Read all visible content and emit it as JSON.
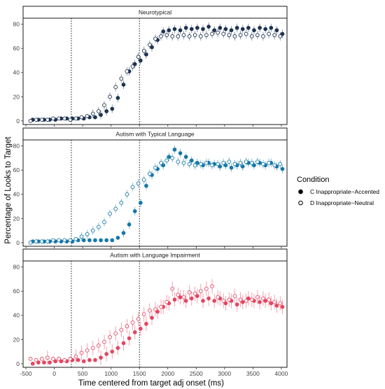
{
  "chart_data": {
    "type": "scatter",
    "xlabel": "Time centered from target adj onset (ms)",
    "ylabel": "Percentage of Looks to Target",
    "xlim": [
      -550,
      4100
    ],
    "ylim": [
      -3,
      85
    ],
    "x_ticks": [
      -500,
      0,
      500,
      1000,
      1500,
      2000,
      2500,
      3000,
      3500,
      4000
    ],
    "y_ticks": [
      0,
      20,
      40,
      60,
      80
    ],
    "reference_lines_x": [
      300,
      1500
    ],
    "legend": {
      "title": "Condition",
      "entries": [
        {
          "label": "C Inappropriate−Accented",
          "marker": "filled"
        },
        {
          "label": "D Inappropriate−Neutral",
          "marker": "open"
        }
      ]
    },
    "panels": [
      {
        "title": "Neurotypical",
        "color": "#1e3350",
        "series": [
          {
            "name": "C Inappropriate−Accented",
            "x": [
              -400,
              -300,
              -200,
              -100,
              0,
              100,
              200,
              300,
              400,
              500,
              600,
              700,
              800,
              900,
              1000,
              1100,
              1200,
              1300,
              1400,
              1500,
              1600,
              1700,
              1800,
              1900,
              2000,
              2100,
              2200,
              2300,
              2400,
              2500,
              2600,
              2700,
              2800,
              2900,
              3000,
              3100,
              3200,
              3300,
              3400,
              3500,
              3600,
              3700,
              3800,
              3900,
              4000
            ],
            "y": [
              1,
              1,
              1,
              1,
              1,
              2,
              2,
              2,
              2,
              2,
              3,
              3,
              5,
              8,
              10,
              19,
              30,
              41,
              47,
              50,
              55,
              61,
              67,
              74,
              75,
              76,
              75,
              77,
              76,
              77,
              76,
              78,
              75,
              77,
              76,
              75,
              77,
              76,
              77,
              75,
              77,
              76,
              77,
              75,
              72
            ]
          },
          {
            "name": "D Inappropriate−Neutral",
            "x": [
              -400,
              -300,
              -200,
              -100,
              0,
              100,
              200,
              300,
              400,
              500,
              600,
              700,
              800,
              900,
              1000,
              1100,
              1200,
              1300,
              1400,
              1500,
              1600,
              1700,
              1800,
              1900,
              2000,
              2100,
              2200,
              2300,
              2400,
              2500,
              2600,
              2700,
              2800,
              2900,
              3000,
              3100,
              3200,
              3300,
              3400,
              3500,
              3600,
              3700,
              3800,
              3900,
              4000
            ],
            "y": [
              0,
              1,
              1,
              1,
              2,
              2,
              2,
              1,
              2,
              3,
              4,
              6,
              8,
              13,
              20,
              28,
              35,
              41,
              45,
              53,
              58,
              63,
              68,
              70,
              71,
              70,
              70,
              71,
              70,
              71,
              70,
              71,
              72,
              73,
              72,
              71,
              70,
              71,
              72,
              70,
              71,
              70,
              72,
              71,
              70
            ]
          }
        ]
      },
      {
        "title": "Autism with Typical Language",
        "color": "#1577a8",
        "series": [
          {
            "name": "C Inappropriate−Accented",
            "x": [
              -400,
              -300,
              -200,
              -100,
              0,
              100,
              200,
              300,
              400,
              500,
              600,
              700,
              800,
              900,
              1000,
              1100,
              1200,
              1300,
              1400,
              1500,
              1600,
              1700,
              1800,
              1900,
              2000,
              2100,
              2200,
              2300,
              2400,
              2500,
              2600,
              2700,
              2800,
              2900,
              3000,
              3100,
              3200,
              3300,
              3400,
              3500,
              3600,
              3700,
              3800,
              3900,
              4000
            ],
            "y": [
              1,
              1,
              1,
              1,
              1,
              1,
              1,
              1,
              2,
              2,
              2,
              2,
              2,
              2,
              2,
              4,
              8,
              15,
              26,
              33,
              47,
              56,
              61,
              64,
              71,
              77,
              74,
              71,
              68,
              66,
              64,
              66,
              65,
              63,
              64,
              62,
              64,
              63,
              66,
              64,
              66,
              64,
              66,
              63,
              61
            ]
          },
          {
            "name": "D Inappropriate−Neutral",
            "x": [
              -400,
              -300,
              -200,
              -100,
              0,
              100,
              200,
              300,
              400,
              500,
              600,
              700,
              800,
              900,
              1000,
              1100,
              1200,
              1300,
              1400,
              1500,
              1600,
              1700,
              1800,
              1900,
              2000,
              2100,
              2200,
              2300,
              2400,
              2500,
              2600,
              2700,
              2800,
              2900,
              3000,
              3100,
              3200,
              3300,
              3400,
              3500,
              3600,
              3700,
              3800,
              3900,
              4000
            ],
            "y": [
              0,
              1,
              1,
              1,
              2,
              2,
              2,
              2,
              3,
              5,
              7,
              10,
              13,
              17,
              24,
              28,
              33,
              40,
              46,
              49,
              52,
              57,
              62,
              66,
              68,
              70,
              67,
              66,
              65,
              64,
              65,
              66,
              64,
              65,
              66,
              67,
              65,
              66,
              67,
              66,
              67,
              65,
              66,
              64,
              65
            ]
          }
        ]
      },
      {
        "title": "Autism with Language Impairment",
        "color": "#e64561",
        "series": [
          {
            "name": "C Inappropriate−Accented",
            "x": [
              -400,
              -300,
              -200,
              -100,
              0,
              100,
              200,
              300,
              400,
              500,
              600,
              700,
              800,
              900,
              1000,
              1100,
              1200,
              1300,
              1400,
              1500,
              1600,
              1700,
              1800,
              1900,
              2000,
              2100,
              2200,
              2300,
              2400,
              2500,
              2600,
              2700,
              2800,
              2900,
              3000,
              3100,
              3200,
              3300,
              3400,
              3500,
              3600,
              3700,
              3800,
              3900,
              4000
            ],
            "y": [
              0,
              1,
              1,
              1,
              2,
              2,
              2,
              3,
              3,
              2,
              3,
              3,
              5,
              8,
              10,
              13,
              17,
              21,
              26,
              29,
              33,
              38,
              43,
              47,
              50,
              53,
              55,
              52,
              54,
              56,
              52,
              54,
              52,
              54,
              50,
              52,
              49,
              51,
              54,
              52,
              51,
              52,
              50,
              48,
              47
            ]
          },
          {
            "name": "D Inappropriate−Neutral",
            "x": [
              -400,
              -300,
              -200,
              -100,
              0,
              100,
              200,
              300,
              400,
              500,
              600,
              700,
              800,
              900,
              1000,
              1100,
              1200,
              1300,
              1400,
              1500,
              1600,
              1700,
              1800,
              1900,
              2000,
              2100,
              2200,
              2300,
              2400,
              2500,
              2600,
              2700,
              2800,
              2900,
              3000,
              3100,
              3200,
              3300,
              3400,
              3500,
              3600,
              3700,
              3800,
              3900,
              4000
            ],
            "y": [
              4,
              3,
              4,
              5,
              4,
              4,
              3,
              4,
              6,
              9,
              11,
              13,
              15,
              18,
              22,
              25,
              28,
              31,
              34,
              37,
              41,
              44,
              45,
              47,
              51,
              62,
              57,
              55,
              59,
              58,
              60,
              62,
              64,
              55,
              52,
              53,
              56,
              53,
              52,
              53,
              55,
              54,
              53,
              51,
              50
            ]
          }
        ]
      }
    ]
  }
}
